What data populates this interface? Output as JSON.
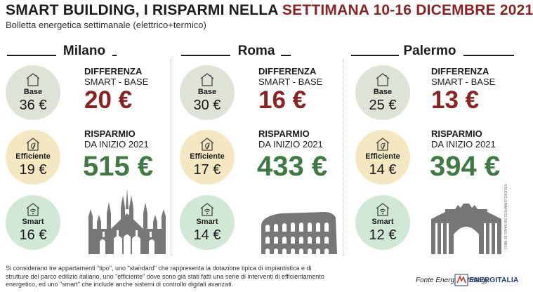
{
  "header": {
    "title_main": "SMART BUILDING, I RISPARMI NELLA ",
    "title_highlight": "SETTIMANA 10-16 DICEMBRE 2021",
    "subtitle": "Bolletta energetica settimanale (elettrico+termico)"
  },
  "colors": {
    "accent_red": "#8b2323",
    "accent_green": "#3f7a45",
    "base_circle": "#dde3d6",
    "efficient_circle": "#f4e8c3",
    "smart_circle": "#d2e8d7"
  },
  "labels": {
    "base": "Base",
    "efficient": "Efficiente",
    "smart": "Smart",
    "difference_line1": "DIFFERENZA",
    "difference_line2": "SMART - BASE",
    "savings_line1": "RISPARMIO",
    "savings_line2": "DA INIZIO 2021"
  },
  "icons": {
    "base": "house-icon",
    "efficient": "house-leaf-icon",
    "smart": "house-wifi-icon"
  },
  "cities": [
    {
      "name": "Milano",
      "base": "36 €",
      "efficient": "19 €",
      "smart": "16 €",
      "difference": "20 €",
      "savings": "515 €",
      "landmark": "duomo-milano-icon"
    },
    {
      "name": "Roma",
      "base": "30 €",
      "efficient": "17 €",
      "smart": "14 €",
      "difference": "16 €",
      "savings": "433 €",
      "landmark": "colosseo-icon"
    },
    {
      "name": "Palermo",
      "base": "25 €",
      "efficient": "14 €",
      "smart": "12 €",
      "difference": "13 €",
      "savings": "394 €",
      "landmark": "teatro-politeama-icon"
    }
  ],
  "footer": {
    "footnote": "Si considerano tre appartamenti \"tipo\", uno \"standard\" che rappresenta la dotazione tipica di impiantistica e di strutture del parco edilizio italiano, uno \"efficiente\" dove sono già stati fatti una serie di interventi di efficientamento energetico, ed uno \"smart\" che include anche sistemi di controllo digitali avanzati.",
    "source": "Fonte Energy&Strategy",
    "logo_text": "ENERGITALIA",
    "credit": "STUDIO GRAFICO SILVANO DI MEO"
  }
}
